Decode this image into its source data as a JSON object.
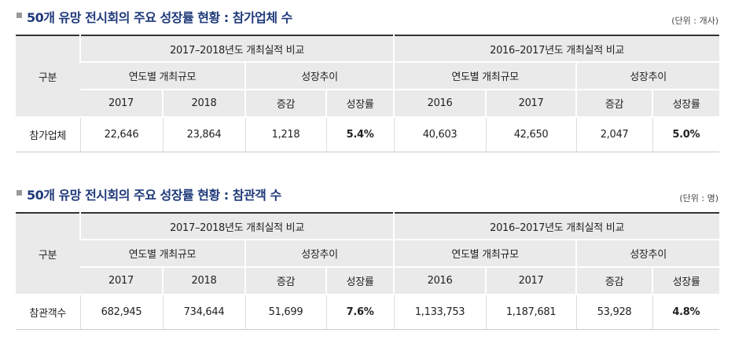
{
  "tables": [
    {
      "title": "50개 유망 전시회의 주요 성장률 현황 : 참가업체 수",
      "unit": "(단위 : 개사)",
      "corner": "구분",
      "group1": "2017–2018년도 개최실적 비교",
      "group2": "2016–2017년도 개최실적 비교",
      "sub_size": "연도별 개최규모",
      "sub_trend": "성장추이",
      "years_a": [
        "2017",
        "2018"
      ],
      "years_b": [
        "2016",
        "2017"
      ],
      "change": "증감",
      "rate": "성장률",
      "row": {
        "label": "참가업체",
        "values": [
          "22,646",
          "23,864",
          "1,218",
          "5.4%",
          "40,603",
          "42,650",
          "2,047",
          "5.0%"
        ]
      }
    },
    {
      "title": "50개 유망 전시회의 주요 성장률 현황 : 참관객 수",
      "unit": "(단위 : 명)",
      "corner": "구분",
      "group1": "2017–2018년도 개최실적 비교",
      "group2": "2016–2017년도 개최실적 비교",
      "sub_size": "연도별 개최규모",
      "sub_trend": "성장추이",
      "years_a": [
        "2017",
        "2018"
      ],
      "years_b": [
        "2016",
        "2017"
      ],
      "change": "증감",
      "rate": "성장률",
      "row": {
        "label": "참관객수",
        "values": [
          "682,945",
          "734,644",
          "51,699",
          "7.6%",
          "1,133,753",
          "1,187,681",
          "53,928",
          "4.8%"
        ]
      }
    }
  ]
}
